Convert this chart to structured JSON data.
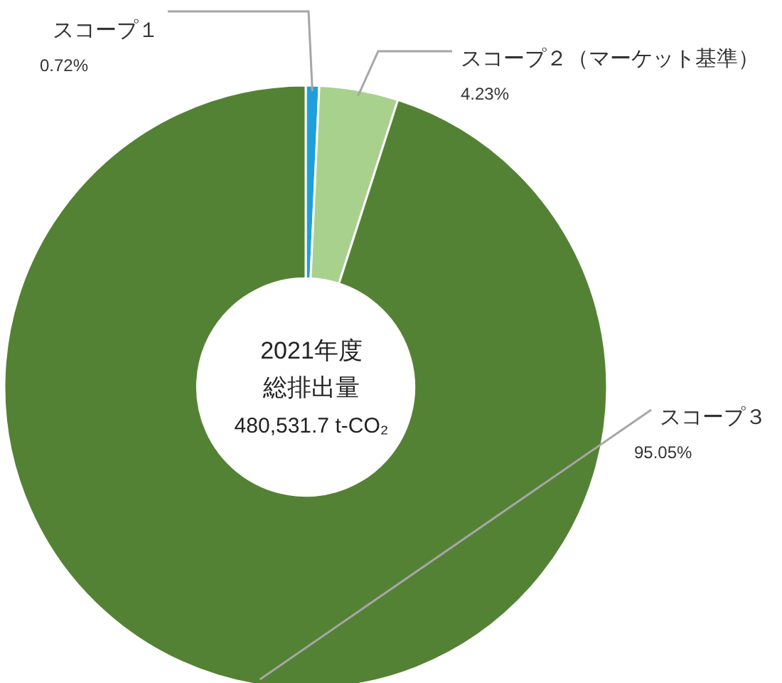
{
  "chart_data": {
    "type": "donut",
    "categories": [
      "スコープ１",
      "スコープ２（マーケット基準）",
      "スコープ３"
    ],
    "values": [
      0.72,
      4.23,
      95.05
    ],
    "value_labels": [
      "0.72%",
      "4.23%",
      "95.05%"
    ],
    "colors": [
      "#1e9fdc",
      "#a9d18e",
      "#548235"
    ],
    "annotations": [
      "2021年度",
      "総排出量",
      "480,531.7 t-CO₂"
    ]
  }
}
